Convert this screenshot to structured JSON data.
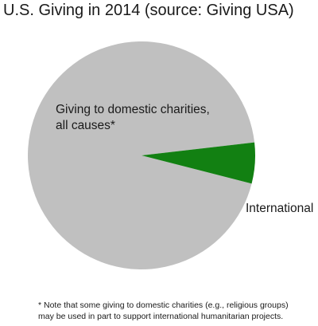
{
  "chart_data": {
    "type": "pie",
    "title": "U.S. Giving in 2014 (source: Giving USA)",
    "slices": [
      {
        "label_lines": [
          "Giving to domestic charities,",
          "all causes*"
        ],
        "value": 94.2,
        "color": "#c0c0c0"
      },
      {
        "label_lines": [
          "International"
        ],
        "value": 5.8,
        "color": "#128012"
      }
    ],
    "footnote_lines": [
      "* Note that some giving to domestic charities (e.g., religious groups)",
      "may be used in part to support international humanitarian projects."
    ]
  }
}
